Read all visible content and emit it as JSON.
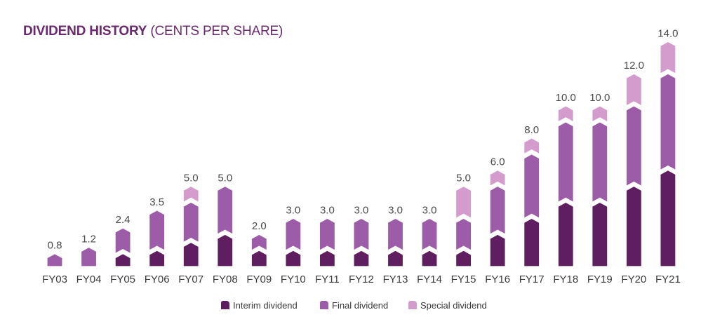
{
  "title": {
    "bold": "DIVIDEND HISTORY",
    "light": " (CENTS PER SHARE)"
  },
  "chart_data": {
    "type": "bar",
    "stacked": true,
    "categories": [
      "FY03",
      "FY04",
      "FY05",
      "FY06",
      "FY07",
      "FY08",
      "FY09",
      "FY10",
      "FY11",
      "FY12",
      "FY13",
      "FY14",
      "FY15",
      "FY16",
      "FY17",
      "FY18",
      "FY19",
      "FY20",
      "FY21"
    ],
    "totals": [
      "0.8",
      "1.2",
      "2.4",
      "3.5",
      "5.0",
      "5.0",
      "2.0",
      "3.0",
      "3.0",
      "3.0",
      "3.0",
      "3.0",
      "5.0",
      "6.0",
      "8.0",
      "10.0",
      "10.0",
      "12.0",
      "14.0"
    ],
    "series": [
      {
        "name": "Interim dividend",
        "color": "#5e1e60",
        "values": [
          0,
          0,
          0.8,
          1.0,
          1.5,
          2.0,
          1.0,
          1.0,
          1.0,
          1.0,
          1.0,
          1.0,
          1.0,
          2.0,
          3.0,
          4.0,
          4.0,
          5.0,
          6.0
        ]
      },
      {
        "name": "Final dividend",
        "color": "#9c5ca7",
        "values": [
          0.8,
          1.2,
          1.6,
          2.5,
          2.5,
          3.0,
          1.0,
          2.0,
          2.0,
          2.0,
          2.0,
          2.0,
          2.0,
          3.0,
          4.0,
          5.0,
          5.0,
          5.0,
          6.0
        ]
      },
      {
        "name": "Special dividend",
        "color": "#d49ccd",
        "values": [
          0,
          0,
          0,
          0,
          1.0,
          0,
          0,
          0,
          0,
          0,
          0,
          0,
          2.0,
          1.0,
          1.0,
          1.0,
          1.0,
          2.0,
          2.0
        ]
      }
    ],
    "ylim": [
      0,
      14
    ],
    "grid": false,
    "legend_position": "bottom-center"
  }
}
